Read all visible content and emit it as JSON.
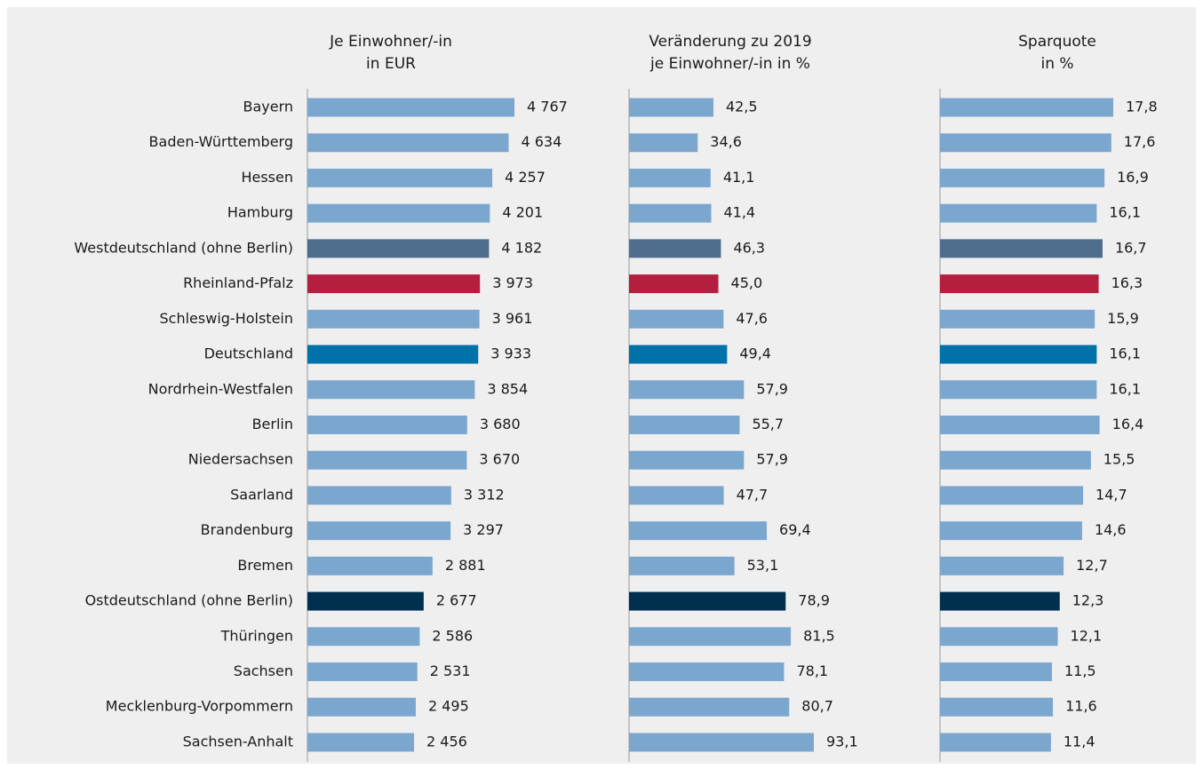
{
  "chart_data": {
    "type": "bar",
    "orientation": "horizontal",
    "categories": [
      "Bayern",
      "Baden-Württemberg",
      "Hessen",
      "Hamburg",
      "Westdeutschland (ohne Berlin)",
      "Rheinland-Pfalz",
      "Schleswig-Holstein",
      "Deutschland",
      "Nordrhein-Westfalen",
      "Berlin",
      "Niedersachsen",
      "Saarland",
      "Brandenburg",
      "Bremen",
      "Ostdeutschland (ohne Berlin)",
      "Thüringen",
      "Sachsen",
      "Mecklenburg-Vorpommern",
      "Sachsen-Anhalt"
    ],
    "colors": [
      "#7ba7cf",
      "#7ba7cf",
      "#7ba7cf",
      "#7ba7cf",
      "#4f6e8e",
      "#b41f40",
      "#7ba7cf",
      "#0072aa",
      "#7ba7cf",
      "#7ba7cf",
      "#7ba7cf",
      "#7ba7cf",
      "#7ba7cf",
      "#7ba7cf",
      "#00304f",
      "#7ba7cf",
      "#7ba7cf",
      "#7ba7cf",
      "#7ba7cf"
    ],
    "series": [
      {
        "name": "Je Einwohner/-in\nin EUR",
        "values": [
          4767,
          4634,
          4257,
          4201,
          4182,
          3973,
          3961,
          3933,
          3854,
          3680,
          3670,
          3312,
          3297,
          2881,
          2677,
          2586,
          2531,
          2495,
          2456
        ],
        "value_labels": [
          "4 767",
          "4 634",
          "4 257",
          "4 201",
          "4 182",
          "3 973",
          "3 961",
          "3 933",
          "3 854",
          "3 680",
          "3 670",
          "3 312",
          "3 297",
          "2 881",
          "2 677",
          "2 586",
          "2 531",
          "2 495",
          "2 456"
        ]
      },
      {
        "name": "Veränderung zu 2019\nje Einwohner/-in in %",
        "values": [
          42.5,
          34.6,
          41.1,
          41.4,
          46.3,
          45.0,
          47.6,
          49.4,
          57.9,
          55.7,
          57.9,
          47.7,
          69.4,
          53.1,
          78.9,
          81.5,
          78.1,
          80.7,
          93.1
        ],
        "value_labels": [
          "42,5",
          "34,6",
          "41,1",
          "41,4",
          "46,3",
          "45,0",
          "47,6",
          "49,4",
          "57,9",
          "55,7",
          "57,9",
          "47,7",
          "69,4",
          "53,1",
          "78,9",
          "81,5",
          "78,1",
          "80,7",
          "93,1"
        ]
      },
      {
        "name": "Sparquote\nin %",
        "values": [
          17.8,
          17.6,
          16.9,
          16.1,
          16.7,
          16.3,
          15.9,
          16.1,
          16.1,
          16.4,
          15.5,
          14.7,
          14.6,
          12.7,
          12.3,
          12.1,
          11.5,
          11.6,
          11.4
        ],
        "value_labels": [
          "17,8",
          "17,6",
          "16,9",
          "16,1",
          "16,7",
          "16,3",
          "15,9",
          "16,1",
          "16,1",
          "16,4",
          "15,5",
          "14,7",
          "14,6",
          "12,7",
          "12,3",
          "12,1",
          "11,5",
          "11,6",
          "11,4"
        ]
      }
    ]
  }
}
